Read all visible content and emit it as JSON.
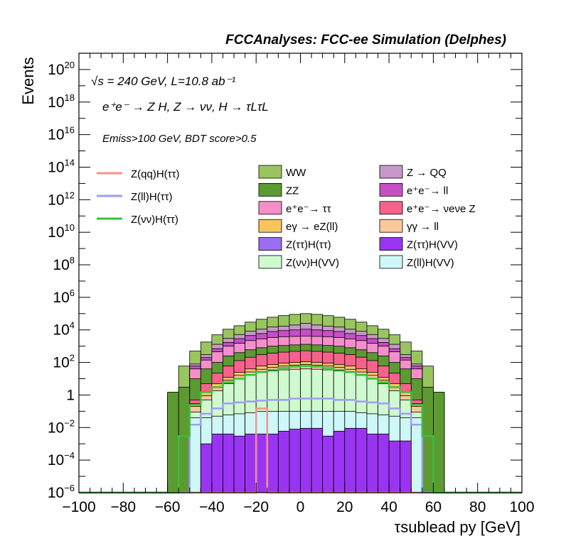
{
  "chart_data": {
    "type": "bar",
    "title": "FCCAnalyses: FCC-ee Simulation (Delphes)",
    "annotations": [
      "√s = 240 GeV, L=10.8 ab⁻¹",
      "e⁺e⁻ → Z H, Z → νν, H → τLτL",
      "Emiss>100 GeV, BDT score>0.5"
    ],
    "xlabel": "τsublead py [GeV]",
    "ylabel": "Events",
    "xlim": [
      -100,
      100
    ],
    "ylim": [
      1e-06,
      1e+21
    ],
    "y_scale": "log",
    "x_ticks": [
      "−100",
      "−80",
      "−60",
      "−40",
      "−20",
      "0",
      "20",
      "40",
      "60",
      "80",
      "100"
    ],
    "y_ticks": [
      "10⁻⁶",
      "10⁻⁴",
      "10⁻²",
      "1",
      "10²",
      "10⁴",
      "10⁶",
      "10⁸",
      "10¹⁰",
      "10¹²",
      "10¹⁴",
      "10¹⁶",
      "10¹⁸",
      "10²⁰"
    ],
    "bin_edges": [
      -100,
      -95,
      -90,
      -85,
      -80,
      -75,
      -70,
      -65,
      -60,
      -55,
      -50,
      -45,
      -40,
      -35,
      -30,
      -25,
      -20,
      -15,
      -10,
      -5,
      0,
      5,
      10,
      15,
      20,
      25,
      30,
      35,
      40,
      45,
      50,
      55,
      60,
      65,
      70,
      75,
      80,
      85,
      90,
      95,
      100
    ],
    "stack_cumulative": [
      {
        "name": "WW",
        "color": "#99c55f",
        "values": [
          0,
          0,
          0,
          0,
          0,
          0,
          0,
          0,
          1,
          60,
          500,
          1800,
          5000,
          11000,
          18000,
          30000,
          45000,
          60000,
          75000,
          90000,
          100000,
          90000,
          75000,
          60000,
          45000,
          30000,
          18000,
          11000,
          5000,
          1800,
          500,
          60,
          1,
          0,
          0,
          0,
          0,
          0,
          0,
          0
        ]
      },
      {
        "name": "Z → QQ",
        "color": "#c798c9",
        "values": [
          0,
          0,
          0,
          0,
          0,
          0,
          0,
          0,
          0,
          0,
          80,
          300,
          1300,
          3000,
          5200,
          8200,
          11000,
          15000,
          17000,
          20000,
          25000,
          20000,
          17000,
          15000,
          11000,
          8200,
          5200,
          3000,
          1300,
          300,
          80,
          0,
          0,
          0,
          0,
          0,
          0,
          0,
          0,
          0
        ]
      },
      {
        "name": "e⁺e⁻ → ll",
        "color": "#c64fc6",
        "values": [
          0,
          0,
          0,
          0,
          0,
          0,
          0,
          0,
          0,
          0,
          60,
          200,
          700,
          1700,
          2900,
          4500,
          6000,
          8000,
          9000,
          10000,
          11000,
          10000,
          9000,
          8000,
          6000,
          4500,
          2900,
          1700,
          700,
          200,
          60,
          0,
          0,
          0,
          0,
          0,
          0,
          0,
          0,
          0
        ]
      },
      {
        "name": "e⁺e⁻ → ττ",
        "color": "#f58fcb",
        "values": [
          0,
          0,
          0,
          0,
          0,
          0,
          0,
          0,
          0,
          0,
          40,
          140,
          450,
          1000,
          1500,
          2200,
          2800,
          3400,
          3800,
          4000,
          4200,
          4000,
          3800,
          3400,
          2800,
          2200,
          1500,
          1000,
          450,
          140,
          40,
          0,
          0,
          0,
          0,
          0,
          0,
          0,
          0,
          0
        ]
      },
      {
        "name": "ZZ",
        "color": "#5c9a32",
        "values": [
          0,
          0,
          0,
          0,
          0,
          0,
          0,
          0,
          1.5,
          3,
          10,
          40,
          100,
          250,
          400,
          600,
          800,
          1000,
          1100,
          1200,
          1300,
          1200,
          1100,
          1000,
          800,
          600,
          400,
          250,
          100,
          40,
          10,
          3,
          1.5,
          0,
          0,
          0,
          0,
          0,
          0,
          0
        ]
      },
      {
        "name": "e⁺e⁻ → νeνe Z",
        "color": "#f7628a",
        "values": [
          0,
          0,
          0,
          0,
          0,
          0,
          0,
          0,
          0,
          0,
          0.5,
          5,
          22,
          60,
          130,
          210,
          300,
          370,
          430,
          480,
          520,
          480,
          430,
          370,
          300,
          210,
          130,
          60,
          22,
          5,
          0.5,
          0,
          0,
          0,
          0,
          0,
          0,
          0,
          0,
          0
        ]
      },
      {
        "name": "eγ → eZ(ll)",
        "color": "#f7c55c",
        "values": [
          0,
          0,
          0,
          0,
          0,
          0,
          0,
          0,
          0,
          0,
          0.3,
          1.5,
          5,
          12,
          25,
          40,
          60,
          75,
          90,
          100,
          110,
          100,
          90,
          75,
          60,
          40,
          25,
          12,
          5,
          1.5,
          0.3,
          0,
          0,
          0,
          0,
          0,
          0,
          0,
          0,
          0
        ]
      },
      {
        "name": "γγ → ll",
        "color": "#fbc79c",
        "values": [
          0,
          0,
          0,
          0,
          0,
          0,
          0,
          0,
          0,
          0,
          0.2,
          0.9,
          3,
          8,
          16,
          26,
          38,
          50,
          60,
          68,
          75,
          68,
          60,
          50,
          38,
          26,
          16,
          8,
          3,
          0.9,
          0.2,
          0,
          0,
          0,
          0,
          0,
          0,
          0,
          0,
          0
        ]
      },
      {
        "name": "Z(νν)H(VV)",
        "color": "#cff9cf",
        "values": [
          0,
          0,
          0,
          0,
          0,
          0,
          0,
          0,
          0,
          0,
          0.09,
          0.5,
          1.8,
          5,
          10,
          17,
          24,
          30,
          35,
          38,
          40,
          38,
          35,
          30,
          24,
          17,
          10,
          5,
          1.8,
          0.5,
          0.09,
          0,
          0,
          0,
          0,
          0,
          0,
          0,
          0,
          0
        ]
      },
      {
        "name": "Z(ll)H(VV)",
        "color": "#cef7f7",
        "values": [
          0,
          0,
          0,
          0,
          0,
          0,
          0,
          0,
          0,
          0,
          0.04,
          0.04,
          0.05,
          0.06,
          0.07,
          0.08,
          0.1,
          0.1,
          0.1,
          0.1,
          0.1,
          0.1,
          0.1,
          0.1,
          0.1,
          0.08,
          0.07,
          0.06,
          0.05,
          0.04,
          0.04,
          0,
          0,
          0,
          0,
          0,
          0,
          0,
          0,
          0
        ]
      },
      {
        "name": "Z(ττ)H(VV)",
        "color": "#9935f2",
        "values": [
          0,
          0,
          0,
          0,
          0,
          0,
          0,
          0,
          0,
          0,
          0,
          0.001,
          0.004,
          0.004,
          0.003,
          0.004,
          0.004,
          0.004,
          0.006,
          0.008,
          0.009,
          0.009,
          0.003,
          0.006,
          0.009,
          0.009,
          0.004,
          0.004,
          0.0015,
          0.0015,
          0,
          0,
          0,
          0,
          0,
          0,
          0,
          0,
          0,
          0
        ]
      },
      {
        "name": "Z(ττ)H(ττ)",
        "color": "#9a6ef0",
        "values": [
          0,
          0,
          0,
          0,
          0,
          0,
          0,
          0,
          0,
          0,
          0,
          0,
          0,
          0,
          0,
          0,
          0,
          0,
          0,
          0,
          0,
          0,
          0,
          0,
          0,
          0,
          0,
          0,
          0,
          0,
          0,
          0,
          0,
          0,
          0,
          0,
          0,
          0,
          0,
          0
        ]
      }
    ],
    "overlay_lines": [
      {
        "name": "Z(qq)H(ττ)",
        "color": "#f4938a",
        "values": [
          0,
          0,
          0,
          0,
          0,
          0,
          0,
          0,
          0,
          0,
          0,
          0,
          0,
          0,
          0,
          0,
          0.15,
          0,
          0,
          0,
          0,
          0,
          0,
          0,
          0,
          0,
          0,
          0,
          0,
          0,
          0,
          0,
          0,
          0,
          0,
          0,
          0,
          0,
          0,
          0
        ]
      },
      {
        "name": "Z(ll)H(ττ)",
        "color": "#9d9df2",
        "values": [
          0,
          0,
          0,
          0,
          0,
          0,
          0,
          0,
          0,
          0,
          0.015,
          0.07,
          0.15,
          0.3,
          0.35,
          0.4,
          0.45,
          0.5,
          0.5,
          0.6,
          0.6,
          0.6,
          0.6,
          0.5,
          0.5,
          0.4,
          0.35,
          0.3,
          0.15,
          0.07,
          0.015,
          0,
          0,
          0,
          0,
          0,
          0,
          0,
          0,
          0
        ]
      },
      {
        "name": "Z(νν)H(ττ)",
        "color": "#3bbf3b",
        "values": [
          0,
          0,
          0,
          0,
          0,
          0,
          0,
          0,
          0,
          0.003,
          0.25,
          1.5,
          3,
          6,
          10,
          17,
          26,
          35,
          45,
          55,
          60,
          55,
          45,
          35,
          26,
          17,
          10,
          6,
          3,
          1.5,
          0.25,
          0.003,
          0,
          0,
          0,
          0,
          0,
          0,
          0,
          0
        ]
      }
    ],
    "legend": {
      "lines": [
        "Z(qq)H(ττ)",
        "Z(ll)H(ττ)",
        "Z(νν)H(ττ)"
      ],
      "boxes_col1": [
        {
          "label": "WW",
          "color": "#99c55f"
        },
        {
          "label": "ZZ",
          "color": "#5c9a32"
        },
        {
          "label": "e⁺e⁻→ ττ",
          "color": "#f58fcb"
        },
        {
          "label": "eγ → eZ(ll)",
          "color": "#f7c55c"
        },
        {
          "label": "Z(ττ)H(ττ)",
          "color": "#9a6ef0"
        },
        {
          "label": "Z(νν)H(VV)",
          "color": "#cff9cf"
        }
      ],
      "boxes_col2": [
        {
          "label": "Z → QQ",
          "color": "#c798c9"
        },
        {
          "label": "e⁺e⁻→ ll",
          "color": "#c64fc6"
        },
        {
          "label": "e⁺e⁻→ νeνe Z",
          "color": "#f7628a"
        },
        {
          "label": "γγ → ll",
          "color": "#fbc79c"
        },
        {
          "label": "Z(ττ)H(VV)",
          "color": "#9935f2"
        },
        {
          "label": "Z(ll)H(VV)",
          "color": "#cef7f7"
        }
      ]
    }
  }
}
